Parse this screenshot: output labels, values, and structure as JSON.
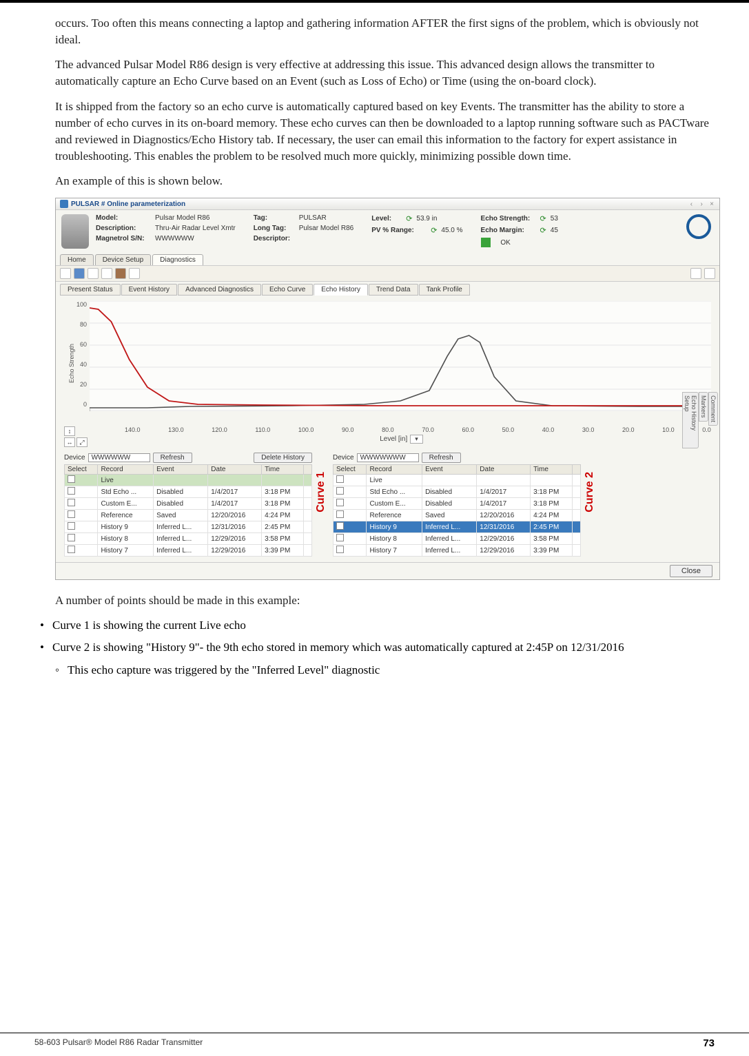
{
  "body": {
    "p1": "occurs. Too often this means connecting a laptop and gathering information AFTER the first signs of the problem, which is obviously not ideal.",
    "p2": "The advanced Pulsar Model R86 design is very effective at addressing this issue. This advanced design allows the transmitter to automatically capture an Echo Curve based on an Event (such as Loss of Echo) or Time (using the on-board clock).",
    "p3": "It is shipped from the factory so an echo curve is automatically captured based on key Events. The transmitter has the ability to store a number of echo curves in its on-board memory. These echo curves can then be downloaded to a laptop running software such as PACTware and reviewed in Diagnostics/Echo History tab.  If necessary, the user can email this information to the factory for expert assistance in troubleshooting. This enables the problem to be resolved much more quickly, minimizing possible down time.",
    "p4": "An example of this is shown below.",
    "p5": "A number of points should be made in this example:",
    "b1": "Curve 1 is showing the current Live echo",
    "b2": "Curve 2 is showing \"History 9\"- the 9th echo stored in memory which was automatically captured at 2:45P on 12/31/2016",
    "b2a": "This echo capture was triggered by the \"Inferred Level\" diagnostic"
  },
  "footer": {
    "title": "58-603 Pulsar® Model R86 Radar Transmitter",
    "page": "73"
  },
  "app": {
    "title": "PULSAR # Online parameterization",
    "header": {
      "model_lbl": "Model:",
      "model": "Pulsar Model R86",
      "desc_lbl": "Description:",
      "desc": "Thru-Air Radar Level Xmtr",
      "sn_lbl": "Magnetrol S/N:",
      "sn": "WWWWWW",
      "tag_lbl": "Tag:",
      "tag": "PULSAR",
      "longtag_lbl": "Long Tag:",
      "longtag": "Pulsar Model R86",
      "descriptor_lbl": "Descriptor:",
      "level_lbl": "Level:",
      "level": "53.9  in",
      "pvrange_lbl": "PV % Range:",
      "pvrange": "45.0  %",
      "echostr_lbl": "Echo Strength:",
      "echostr": "53",
      "echomargin_lbl": "Echo Margin:",
      "echomargin": "45",
      "ok": "OK"
    },
    "nav": {
      "home": "Home",
      "setup": "Device Setup",
      "diag": "Diagnostics"
    },
    "subtabs": [
      "Present Status",
      "Event History",
      "Advanced Diagnostics",
      "Echo Curve",
      "Echo History",
      "Trend Data",
      "Tank Profile"
    ],
    "chart": {
      "y_label": "Echo Strength",
      "y_ticks": [
        "100",
        "80",
        "60",
        "40",
        "20",
        "0"
      ],
      "x_ticks": [
        "140.0",
        "130.0",
        "120.0",
        "110.0",
        "100.0",
        "90.0",
        "80.0",
        "70.0",
        "60.0",
        "50.0",
        "40.0",
        "30.0",
        "20.0",
        "10.0",
        "0.0"
      ],
      "x_label": "Level [in]",
      "colors": {
        "curve1": "#c01818",
        "curve2": "#505050",
        "grid": "#e5e5e5",
        "bg": "#fcfcfa"
      },
      "side_tabs": [
        "Comment",
        "Markers",
        "Echo History Setup"
      ]
    },
    "dev": {
      "label": "Device",
      "refresh": "Refresh",
      "delete": "Delete History",
      "val1": "WWWWWW",
      "val2": "WWWWWWW",
      "curve1": "Curve 1",
      "curve2": "Curve 2",
      "cols": {
        "select": "Select",
        "record": "Record",
        "event": "Event",
        "date": "Date",
        "time": "Time"
      },
      "rows": [
        {
          "rec": "Live",
          "evt": "",
          "date": "",
          "time": "",
          "hl": true
        },
        {
          "rec": "Std Echo ...",
          "evt": "Disabled",
          "date": "1/4/2017",
          "time": "3:18 PM"
        },
        {
          "rec": "Custom E...",
          "evt": "Disabled",
          "date": "1/4/2017",
          "time": "3:18 PM"
        },
        {
          "rec": "Reference",
          "evt": "Saved",
          "date": "12/20/2016",
          "time": "4:24 PM"
        },
        {
          "rec": "History 9",
          "evt": "Inferred L...",
          "date": "12/31/2016",
          "time": "2:45 PM"
        },
        {
          "rec": "History 8",
          "evt": "Inferred L...",
          "date": "12/29/2016",
          "time": "3:58 PM"
        },
        {
          "rec": "History 7",
          "evt": "Inferred L...",
          "date": "12/29/2016",
          "time": "3:39 PM"
        }
      ],
      "rows2": [
        {
          "rec": "Live",
          "evt": "",
          "date": "",
          "time": ""
        },
        {
          "rec": "Std Echo ...",
          "evt": "Disabled",
          "date": "1/4/2017",
          "time": "3:18 PM"
        },
        {
          "rec": "Custom E...",
          "evt": "Disabled",
          "date": "1/4/2017",
          "time": "3:18 PM"
        },
        {
          "rec": "Reference",
          "evt": "Saved",
          "date": "12/20/2016",
          "time": "4:24 PM"
        },
        {
          "rec": "History 9",
          "evt": "Inferred L...",
          "date": "12/31/2016",
          "time": "2:45 PM",
          "sel": true
        },
        {
          "rec": "History 8",
          "evt": "Inferred L...",
          "date": "12/29/2016",
          "time": "3:58 PM"
        },
        {
          "rec": "History 7",
          "evt": "Inferred L...",
          "date": "12/29/2016",
          "time": "3:39 PM"
        }
      ]
    },
    "close": "Close"
  }
}
